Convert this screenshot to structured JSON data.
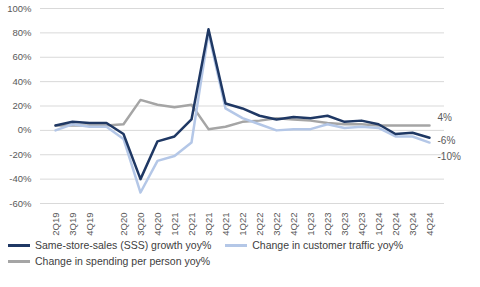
{
  "chart_data": {
    "type": "line",
    "categories": [
      "2Q19",
      "3Q19",
      "4Q19",
      null,
      "2Q20",
      "3Q20",
      "4Q20",
      "1Q21",
      "2Q21",
      "3Q21",
      "4Q21",
      "1Q22",
      "2Q22",
      "3Q22",
      "4Q22",
      "1Q23",
      "2Q23",
      "3Q23",
      "4Q23",
      "1Q24",
      "2Q24",
      "3Q24",
      "4Q24"
    ],
    "series": [
      {
        "name": "Same-store-sales (SSS) growth yoy%",
        "color": "#1f3864",
        "values": [
          4,
          7,
          6,
          6,
          -3,
          -40,
          -9,
          -5,
          9,
          83,
          22,
          18,
          12,
          9,
          11,
          10,
          12,
          7,
          8,
          5,
          -3,
          -2,
          -6
        ],
        "value_labels": [
          null,
          null,
          null,
          null,
          null,
          null,
          null,
          null,
          null,
          null,
          null,
          null,
          null,
          null,
          null,
          null,
          null,
          null,
          null,
          null,
          null,
          null,
          "-6%"
        ]
      },
      {
        "name": "Change in customer traffic yoy%",
        "color": "#b4c7e7",
        "values": [
          0,
          5,
          3,
          3,
          -7,
          -51,
          -25,
          -21,
          -10,
          80,
          18,
          10,
          5,
          0,
          1,
          1,
          5,
          2,
          3,
          2,
          -5,
          -5,
          -10
        ],
        "value_labels": [
          null,
          null,
          null,
          null,
          null,
          null,
          null,
          null,
          null,
          null,
          null,
          null,
          null,
          null,
          null,
          null,
          null,
          null,
          null,
          null,
          null,
          null,
          "-10%"
        ]
      },
      {
        "name": "Change in spending per person yoy%",
        "color": "#a5a5a5",
        "values": [
          4,
          4,
          4,
          4,
          5,
          25,
          21,
          19,
          21,
          1,
          3,
          7,
          8,
          10,
          9,
          8,
          6,
          5,
          5,
          4,
          4,
          4,
          4
        ],
        "value_labels": [
          null,
          null,
          null,
          null,
          null,
          null,
          null,
          null,
          null,
          null,
          null,
          null,
          null,
          null,
          null,
          null,
          null,
          null,
          null,
          null,
          null,
          null,
          "4%"
        ]
      }
    ],
    "ylim": [
      -60,
      100
    ],
    "yticks": [
      {
        "value": -60,
        "label": "-60%"
      },
      {
        "value": -40,
        "label": "-40%"
      },
      {
        "value": -20,
        "label": "-20%"
      },
      {
        "value": 0,
        "label": "0%"
      },
      {
        "value": 20,
        "label": "20%"
      },
      {
        "value": 40,
        "label": "40%"
      },
      {
        "value": 60,
        "label": "60%"
      },
      {
        "value": 80,
        "label": "80%"
      },
      {
        "value": 100,
        "label": "100%"
      }
    ],
    "grid": true,
    "legend": "bottom"
  }
}
